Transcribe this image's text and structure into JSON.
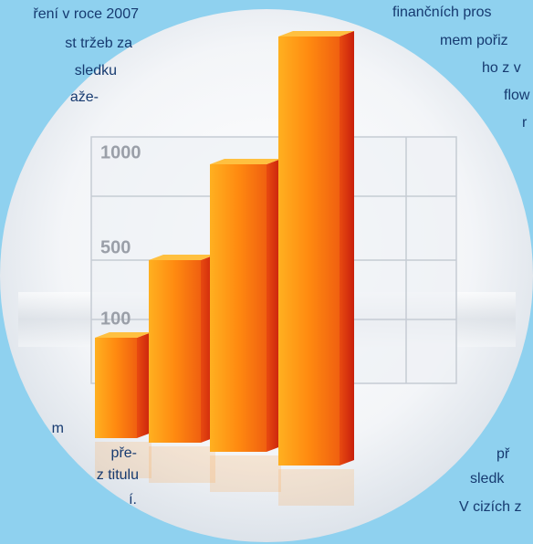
{
  "left_top": [
    "ření v roce 2007",
    "st tržeb za",
    "sledku",
    "aže-"
  ],
  "left_bottom": [
    "m",
    "pře-",
    "z titulu",
    "í."
  ],
  "right_top": [
    "finančních pros",
    "mem pořiz",
    "ho z v",
    "flow",
    "r"
  ],
  "right_bottom": [
    "př",
    "sledk",
    "V cizích z"
  ],
  "illustration": {
    "axis_labels": [
      "1000",
      "500",
      "100"
    ]
  }
}
